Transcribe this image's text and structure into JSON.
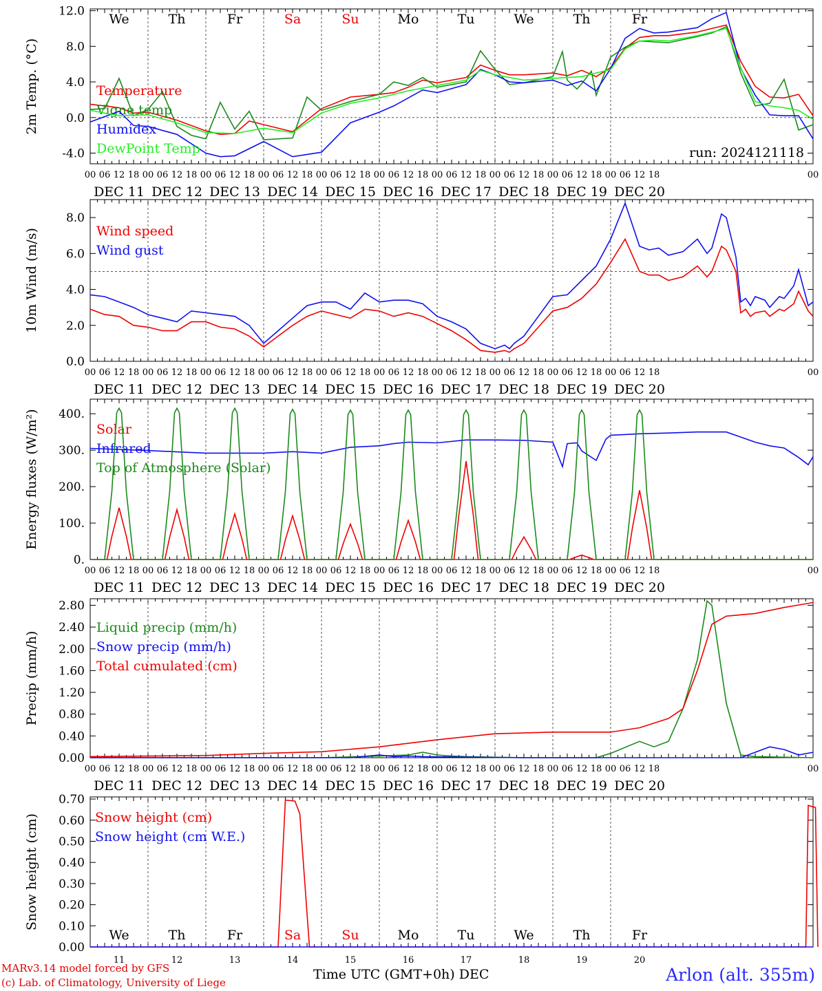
{
  "run_label": "run: 2024121118",
  "station": "Arlon (alt. 355m)",
  "credits": [
    "MARv3.14 model forced by GFS",
    "(c) Lab. of Climatology, University of Liege"
  ],
  "time_axis_label": "Time UTC (GMT+0h)",
  "month_label": "DEC",
  "colors": {
    "red": "#ee0000",
    "darkgreen": "#1a8a1a",
    "blue": "#1010ee",
    "lightgreen": "#22ee22",
    "weekend": "#ee0000"
  },
  "chart_data": [
    {
      "type": "line",
      "id": "temp",
      "ylabel": "2m Temp. (°C)",
      "ylim": [
        -5.2,
        12.2
      ],
      "yticks": [
        "12.0",
        "8.0",
        "4.0",
        "0.0",
        "-4.0"
      ],
      "ytick_values": [
        12,
        8,
        4,
        0,
        -4
      ],
      "ref_line": 0,
      "x_unit": "hours since DEC 11 00 UTC",
      "day_labels": [
        "We",
        "Th",
        "Fr",
        "Sa",
        "Su",
        "Mo",
        "Tu",
        "We",
        "Th",
        "Fr"
      ],
      "weekend_days": [
        3,
        4
      ],
      "hour_ticks": [
        "00",
        "06",
        "12",
        "18"
      ],
      "dates": [
        "DEC 11",
        "DEC 12",
        "DEC 13",
        "DEC 14",
        "DEC 15",
        "DEC 16",
        "DEC 17",
        "DEC 18",
        "DEC 19",
        "DEC 20"
      ],
      "series": [
        {
          "name": "Temperature",
          "color": "#ee0000",
          "x": [
            0,
            12,
            18,
            24,
            36,
            48,
            54,
            60,
            66,
            72,
            84,
            96,
            108,
            120,
            126,
            132,
            138,
            144,
            156,
            162,
            168,
            174,
            180,
            192,
            198,
            204,
            210,
            216,
            222,
            228,
            234,
            240,
            252,
            258,
            264,
            270,
            276,
            282,
            288,
            294,
            300
          ],
          "y": [
            1.5,
            1.1,
            0.5,
            0.6,
            -0.3,
            -1.5,
            -1.9,
            -1.8,
            -0.4,
            -0.8,
            -1.6,
            1.0,
            2.3,
            2.6,
            2.8,
            3.4,
            4.2,
            3.9,
            4.5,
            5.9,
            5.3,
            4.8,
            4.8,
            5.0,
            4.7,
            5.3,
            4.6,
            5.6,
            7.8,
            9.0,
            9.2,
            9.2,
            9.6,
            10.0,
            10.4,
            6.3,
            3.5,
            2.3,
            2.2,
            2.6,
            0.2
          ]
        },
        {
          "name": "Vigne temp",
          "color": "#1a8a1a",
          "x": [
            0,
            6,
            12,
            18,
            24,
            30,
            36,
            42,
            48,
            54,
            60,
            66,
            72,
            84,
            90,
            96,
            108,
            120,
            126,
            132,
            138,
            144,
            156,
            162,
            168,
            174,
            180,
            192,
            196,
            198,
            202,
            204,
            208,
            210,
            216,
            222,
            228,
            234,
            240,
            252,
            258,
            264,
            270,
            276,
            282,
            288,
            294,
            300
          ],
          "y": [
            0.9,
            1.0,
            4.4,
            0.2,
            0.9,
            2.9,
            -1.0,
            -2.0,
            -2.4,
            1.7,
            -1.3,
            0.7,
            -2.5,
            -2.3,
            2.3,
            0.8,
            1.8,
            2.6,
            4.0,
            3.6,
            4.5,
            3.4,
            4.0,
            7.5,
            5.4,
            3.7,
            3.9,
            4.6,
            7.4,
            4.2,
            3.2,
            3.8,
            5.2,
            2.5,
            6.8,
            7.9,
            8.6,
            8.5,
            8.4,
            9.1,
            9.5,
            10.2,
            5.0,
            1.3,
            1.6,
            4.3,
            -1.4,
            -0.8
          ]
        },
        {
          "name": "Humidex",
          "color": "#1010ee",
          "x": [
            0,
            12,
            18,
            24,
            36,
            48,
            54,
            60,
            72,
            84,
            96,
            108,
            120,
            126,
            132,
            138,
            144,
            156,
            162,
            168,
            174,
            180,
            192,
            198,
            204,
            210,
            216,
            222,
            228,
            234,
            240,
            252,
            258,
            264,
            270,
            276,
            282,
            288,
            294,
            300
          ],
          "y": [
            -0.5,
            0.7,
            -0.9,
            -1.0,
            -1.9,
            -4.0,
            -4.4,
            -4.3,
            -2.7,
            -4.4,
            -3.9,
            -0.6,
            0.6,
            1.3,
            2.2,
            3.1,
            2.8,
            3.7,
            5.4,
            4.8,
            4.0,
            3.9,
            4.2,
            3.6,
            4.1,
            3.0,
            5.5,
            8.9,
            10.0,
            9.5,
            9.6,
            10.1,
            11.1,
            11.8,
            5.5,
            2.5,
            0.3,
            0.2,
            0.2,
            -2.4
          ]
        },
        {
          "name": "DewPoint Temp",
          "color": "#22ee22",
          "x": [
            0,
            12,
            24,
            36,
            48,
            60,
            72,
            84,
            96,
            108,
            120,
            132,
            144,
            156,
            162,
            168,
            180,
            192,
            204,
            216,
            222,
            228,
            234,
            240,
            252,
            258,
            264,
            270,
            276,
            282,
            288,
            294,
            300
          ],
          "y": [
            0.8,
            0.2,
            0.3,
            -0.6,
            -1.7,
            -1.8,
            -1.2,
            -1.7,
            0.5,
            1.6,
            2.2,
            3.0,
            3.6,
            4.2,
            5.3,
            4.8,
            4.2,
            4.4,
            4.6,
            5.4,
            7.7,
            8.6,
            8.7,
            8.6,
            9.2,
            9.6,
            10.0,
            5.6,
            1.8,
            1.3,
            1.1,
            0.8,
            -0.2
          ]
        }
      ]
    },
    {
      "type": "line",
      "id": "wind",
      "ylabel": "10m Wind (m/s)",
      "ylim": [
        0,
        9.0
      ],
      "yticks": [
        "8.0",
        "6.0",
        "4.0",
        "2.0",
        "0.0"
      ],
      "ytick_values": [
        8,
        6,
        4,
        2,
        0
      ],
      "ref_line": 5,
      "dates": [
        "DEC 11",
        "DEC 12",
        "DEC 13",
        "DEC 14",
        "DEC 15",
        "DEC 16",
        "DEC 17",
        "DEC 18",
        "DEC 19",
        "DEC 20"
      ],
      "series": [
        {
          "name": "Wind speed",
          "color": "#ee0000",
          "x": [
            0,
            6,
            12,
            18,
            24,
            30,
            36,
            42,
            48,
            54,
            60,
            66,
            72,
            78,
            84,
            90,
            96,
            102,
            108,
            114,
            120,
            126,
            132,
            138,
            144,
            150,
            156,
            162,
            168,
            172,
            174,
            176,
            180,
            186,
            192,
            198,
            204,
            210,
            216,
            222,
            228,
            232,
            236,
            240,
            246,
            252,
            256,
            258,
            262,
            264,
            268,
            270,
            272,
            274,
            276,
            280,
            282,
            286,
            288,
            292,
            294,
            298,
            300
          ],
          "y": [
            2.9,
            2.6,
            2.5,
            2.0,
            1.9,
            1.7,
            1.7,
            2.2,
            2.2,
            1.9,
            1.8,
            1.4,
            0.8,
            1.4,
            2.0,
            2.5,
            2.8,
            2.6,
            2.4,
            2.9,
            2.8,
            2.5,
            2.7,
            2.5,
            2.1,
            1.7,
            1.2,
            0.6,
            0.5,
            0.6,
            0.5,
            0.7,
            1.0,
            1.9,
            2.8,
            3.0,
            3.5,
            4.3,
            5.5,
            6.8,
            5.0,
            4.8,
            4.8,
            4.5,
            4.7,
            5.3,
            4.7,
            5.0,
            6.4,
            6.2,
            5.0,
            2.7,
            2.9,
            2.5,
            2.7,
            2.8,
            2.5,
            2.9,
            2.8,
            3.2,
            3.9,
            2.8,
            2.5
          ]
        },
        {
          "name": "Wind gust",
          "color": "#1010ee",
          "x": [
            0,
            6,
            12,
            18,
            24,
            30,
            36,
            42,
            48,
            54,
            60,
            66,
            72,
            78,
            84,
            90,
            96,
            102,
            108,
            114,
            120,
            126,
            132,
            138,
            144,
            150,
            156,
            162,
            168,
            172,
            174,
            176,
            180,
            186,
            192,
            198,
            204,
            210,
            216,
            222,
            228,
            232,
            236,
            240,
            246,
            252,
            256,
            258,
            262,
            264,
            268,
            270,
            272,
            274,
            276,
            280,
            282,
            286,
            288,
            292,
            294,
            298,
            300
          ],
          "y": [
            3.7,
            3.6,
            3.3,
            3.0,
            2.6,
            2.4,
            2.2,
            2.8,
            2.7,
            2.6,
            2.5,
            2.0,
            1.0,
            1.7,
            2.4,
            3.1,
            3.3,
            3.3,
            2.9,
            3.8,
            3.3,
            3.4,
            3.4,
            3.2,
            2.5,
            2.2,
            1.8,
            1.0,
            0.7,
            0.9,
            0.7,
            1.0,
            1.4,
            2.5,
            3.6,
            3.7,
            4.5,
            5.3,
            6.8,
            8.8,
            6.4,
            6.2,
            6.3,
            5.9,
            6.1,
            6.8,
            6.0,
            6.3,
            8.2,
            8.0,
            5.8,
            3.3,
            3.5,
            3.1,
            3.6,
            3.4,
            3.0,
            3.6,
            3.5,
            4.2,
            5.1,
            3.1,
            3.3
          ]
        }
      ]
    },
    {
      "type": "line",
      "id": "energy",
      "ylabel": "Energy fluxes (W/m²)",
      "ylim": [
        0,
        440
      ],
      "yticks": [
        "400.",
        "300.",
        "200.",
        "100.",
        "0."
      ],
      "ytick_values": [
        400,
        300,
        200,
        100,
        0
      ],
      "dates": [
        "DEC 11",
        "DEC 12",
        "DEC 13",
        "DEC 14",
        "DEC 15",
        "DEC 16",
        "DEC 17",
        "DEC 18",
        "DEC 19",
        "DEC 20"
      ],
      "series": [
        {
          "name": "Solar",
          "color": "#ee0000",
          "daily_peaks": [
            142,
            137,
            125,
            120,
            97,
            107,
            270,
            62,
            12,
            190
          ]
        },
        {
          "name": "Infrared",
          "color": "#1010ee",
          "x": [
            0,
            24,
            48,
            72,
            84,
            96,
            108,
            120,
            126,
            132,
            144,
            156,
            168,
            180,
            192,
            196,
            198,
            202,
            204,
            210,
            214,
            216,
            222,
            228,
            240,
            252,
            264,
            270,
            276,
            282,
            288,
            294,
            298,
            300
          ],
          "y": [
            305,
            299,
            292,
            292,
            296,
            292,
            308,
            312,
            318,
            322,
            320,
            328,
            328,
            327,
            322,
            255,
            318,
            320,
            298,
            272,
            330,
            341,
            343,
            345,
            347,
            350,
            350,
            336,
            322,
            312,
            306,
            280,
            260,
            282
          ]
        },
        {
          "name": "Top of Atmosphere (Solar)",
          "color": "#1a8a1a",
          "daily_peaks": [
            415,
            415,
            415,
            412,
            410,
            410,
            410,
            410,
            410,
            410
          ]
        }
      ]
    },
    {
      "type": "line",
      "id": "precip",
      "ylabel": "Precip (mm/h)",
      "ylim": [
        0,
        2.92
      ],
      "yticks": [
        "2.80",
        "2.40",
        "2.00",
        "1.60",
        "1.20",
        "0.80",
        "0.40",
        "0.00"
      ],
      "ytick_values": [
        2.8,
        2.4,
        2.0,
        1.6,
        1.2,
        0.8,
        0.4,
        0
      ],
      "dates": [
        "DEC 11",
        "DEC 12",
        "DEC 13",
        "DEC 14",
        "DEC 15",
        "DEC 16",
        "DEC 17",
        "DEC 18",
        "DEC 19",
        "DEC 20"
      ],
      "series": [
        {
          "name": "Liquid precip (mm/h)",
          "color": "#1a8a1a",
          "x": [
            0,
            96,
            120,
            132,
            138,
            144,
            150,
            156,
            180,
            210,
            216,
            228,
            234,
            240,
            246,
            252,
            256,
            258,
            260,
            264,
            270,
            276,
            300
          ],
          "y": [
            0,
            0,
            0.03,
            0.05,
            0.1,
            0.05,
            0.03,
            0.02,
            0,
            0,
            0.08,
            0.3,
            0.2,
            0.3,
            0.9,
            1.8,
            2.88,
            2.8,
            2.2,
            1.0,
            0.05,
            0.02,
            0.0
          ]
        },
        {
          "name": "Snow precip (mm/h)",
          "color": "#1010ee",
          "x": [
            0,
            108,
            120,
            126,
            132,
            138,
            180,
            270,
            276,
            282,
            288,
            294,
            300
          ],
          "y": [
            0,
            0,
            0.05,
            0.02,
            0.03,
            0.02,
            0,
            0,
            0.1,
            0.2,
            0.15,
            0.05,
            0.1
          ]
        },
        {
          "name": "Total cumulated (cm)",
          "color": "#ee0000",
          "x": [
            0,
            48,
            72,
            96,
            120,
            144,
            168,
            192,
            216,
            228,
            240,
            246,
            252,
            258,
            264,
            276,
            288,
            300
          ],
          "y": [
            0.02,
            0.04,
            0.08,
            0.11,
            0.2,
            0.33,
            0.44,
            0.47,
            0.47,
            0.55,
            0.72,
            0.9,
            1.6,
            2.45,
            2.6,
            2.65,
            2.76,
            2.85
          ]
        }
      ]
    },
    {
      "type": "line",
      "id": "snow",
      "ylabel": "Snow height (cm)",
      "ylim": [
        0,
        0.71
      ],
      "yticks": [
        "0.70",
        "0.60",
        "0.50",
        "0.40",
        "0.30",
        "0.20",
        "0.10",
        "0.00"
      ],
      "ytick_values": [
        0.7,
        0.6,
        0.5,
        0.4,
        0.3,
        0.2,
        0.1,
        0
      ],
      "x_dates": [
        "11",
        "12",
        "13",
        "14",
        "15",
        "16",
        "17",
        "18",
        "19",
        "20"
      ],
      "day_labels": [
        "We",
        "Th",
        "Fr",
        "Sa",
        "Su",
        "Mo",
        "Tu",
        "We",
        "Th",
        "Fr"
      ],
      "series": [
        {
          "name": "Snow height (cm)",
          "color": "#ee0000",
          "x": [
            0,
            78,
            81,
            85,
            87,
            91,
            297,
            298,
            301,
            302
          ],
          "y": [
            0,
            0,
            0.695,
            0.69,
            0.63,
            0,
            0,
            0.67,
            0.66,
            0
          ]
        },
        {
          "name": "Snow height (cm W.E.)",
          "color": "#1010ee",
          "x": [
            0,
            300
          ],
          "y": [
            0,
            0
          ]
        }
      ]
    }
  ]
}
